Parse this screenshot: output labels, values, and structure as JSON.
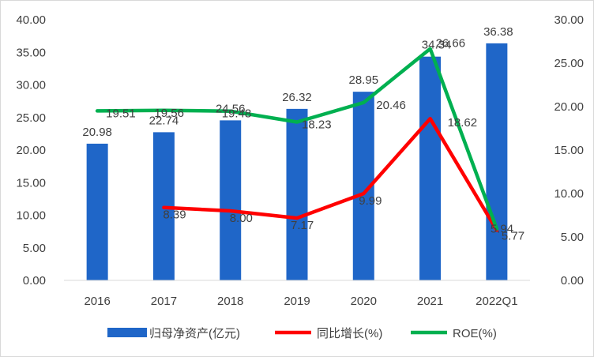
{
  "chart_data": {
    "type": "bar",
    "title": "",
    "xlabel": "",
    "ylabel": "",
    "categories": [
      "2016",
      "2017",
      "2018",
      "2019",
      "2020",
      "2021",
      "2022Q1"
    ],
    "y_left_lim": [
      0,
      40
    ],
    "y_right_lim": [
      0,
      30
    ],
    "y_left_ticks": [
      "0.00",
      "5.00",
      "10.00",
      "15.00",
      "20.00",
      "25.00",
      "30.00",
      "35.00",
      "40.00"
    ],
    "y_right_ticks": [
      "0.00",
      "5.00",
      "10.00",
      "15.00",
      "20.00",
      "25.00",
      "30.00"
    ],
    "grid": false,
    "legend_position": "bottom",
    "series": [
      {
        "name": "归母净资产(亿元)",
        "kind": "bar",
        "axis": "left",
        "color": "#1f66c8",
        "values": [
          20.98,
          22.74,
          24.56,
          26.32,
          28.95,
          34.34,
          36.38
        ],
        "labels": [
          "20.98",
          "22.74",
          "24.56",
          "26.32",
          "28.95",
          "34.34",
          "36.38"
        ]
      },
      {
        "name": "同比增长(%)",
        "kind": "line",
        "axis": "right",
        "color": "#ff0000",
        "values": [
          null,
          8.39,
          8.0,
          7.17,
          9.99,
          18.62,
          5.77
        ],
        "labels": [
          "",
          "8.39",
          "8.00",
          "7.17",
          "9.99",
          "18.62",
          "5.77"
        ]
      },
      {
        "name": "ROE(%)",
        "kind": "line",
        "axis": "right",
        "color": "#00b050",
        "values": [
          19.51,
          19.56,
          19.48,
          18.23,
          20.46,
          26.66,
          5.94
        ],
        "labels": [
          "19.51",
          "19.56",
          "19.48",
          "18.23",
          "20.46",
          "26.66",
          "5.94"
        ]
      }
    ]
  }
}
